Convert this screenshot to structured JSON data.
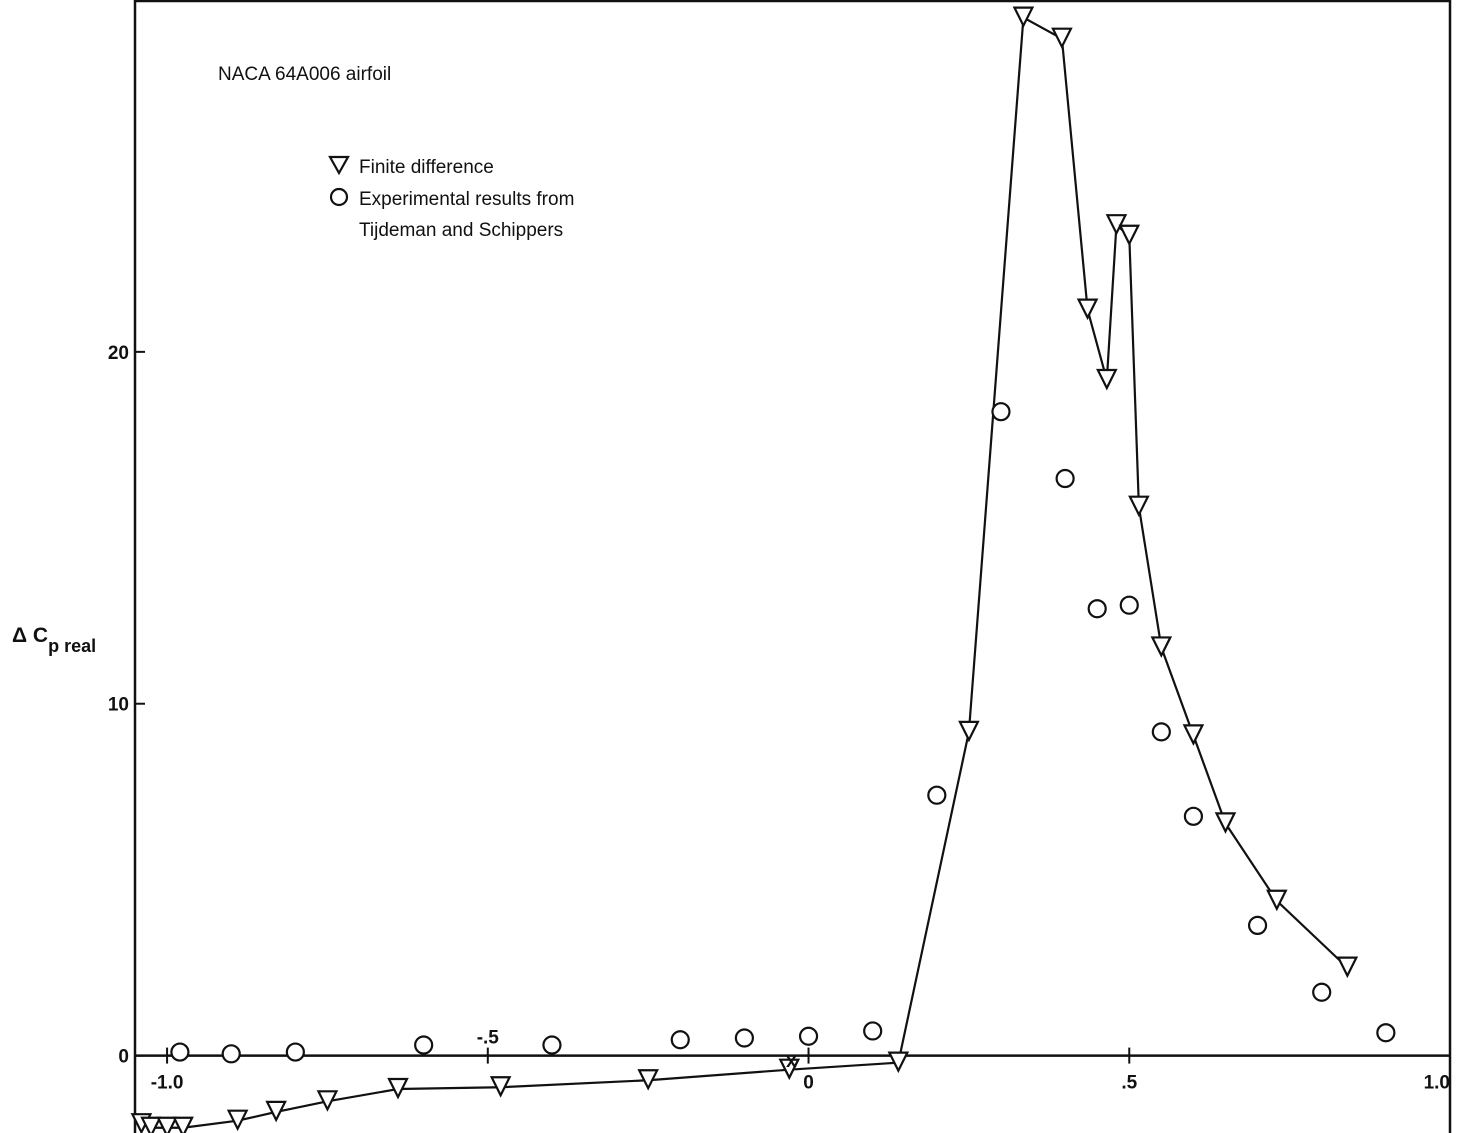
{
  "chart_data": {
    "type": "scatter",
    "title": "NACA 64A006 airfoil",
    "xlabel": "x",
    "ylabel": {
      "main": "Δ C",
      "sub": "p real"
    },
    "xlim": [
      -1.05,
      1.0
    ],
    "ylim": [
      -2.2,
      30.0
    ],
    "x_ticks": [
      {
        "value": -1.0,
        "label": "-1.0"
      },
      {
        "value": -0.5,
        "label": "-.5"
      },
      {
        "value": 0,
        "label": "0"
      },
      {
        "value": 0.5,
        "label": ".5"
      },
      {
        "value": 1.0,
        "label": "1.0"
      }
    ],
    "y_ticks": [
      {
        "value": 0,
        "label": "0"
      },
      {
        "value": 10,
        "label": "10"
      },
      {
        "value": 20,
        "label": "20"
      }
    ],
    "grid": false,
    "legend_position": "top-left",
    "series": [
      {
        "name": "Finite difference",
        "marker": "triangle-down",
        "line": true,
        "points": [
          [
            -1.04,
            -1.95
          ],
          [
            -1.025,
            -2.05
          ],
          [
            -1.0,
            -2.05
          ],
          [
            -0.975,
            -2.05
          ],
          [
            -0.89,
            -1.85
          ],
          [
            -0.83,
            -1.6
          ],
          [
            -0.75,
            -1.3
          ],
          [
            -0.64,
            -0.95
          ],
          [
            -0.48,
            -0.9
          ],
          [
            -0.25,
            -0.7
          ],
          [
            -0.03,
            -0.4
          ],
          [
            0.14,
            -0.2
          ],
          [
            0.25,
            9.2
          ],
          [
            0.335,
            29.5
          ],
          [
            0.395,
            28.9
          ],
          [
            0.435,
            21.2
          ],
          [
            0.465,
            19.2
          ],
          [
            0.48,
            23.6
          ],
          [
            0.5,
            23.3
          ],
          [
            0.515,
            15.6
          ],
          [
            0.55,
            11.6
          ],
          [
            0.6,
            9.1
          ],
          [
            0.65,
            6.6
          ],
          [
            0.73,
            4.4
          ],
          [
            0.84,
            2.5
          ]
        ]
      },
      {
        "name": "Experimental results from Tijdeman and Schippers",
        "legend_lines": [
          "Experimental results from",
          "Tijdeman and Schippers"
        ],
        "marker": "circle",
        "line": false,
        "points": [
          [
            -0.98,
            0.1
          ],
          [
            -0.9,
            0.05
          ],
          [
            -0.8,
            0.1
          ],
          [
            -0.6,
            0.3
          ],
          [
            -0.4,
            0.3
          ],
          [
            -0.2,
            0.45
          ],
          [
            -0.1,
            0.5
          ],
          [
            0,
            0.55
          ],
          [
            0.1,
            0.7
          ],
          [
            0.2,
            7.4
          ],
          [
            0.3,
            18.3
          ],
          [
            0.4,
            16.4
          ],
          [
            0.45,
            12.7
          ],
          [
            0.5,
            12.8
          ],
          [
            0.55,
            9.2
          ],
          [
            0.6,
            6.8
          ],
          [
            0.7,
            3.7
          ],
          [
            0.8,
            1.8
          ],
          [
            0.9,
            0.65
          ]
        ]
      }
    ]
  }
}
